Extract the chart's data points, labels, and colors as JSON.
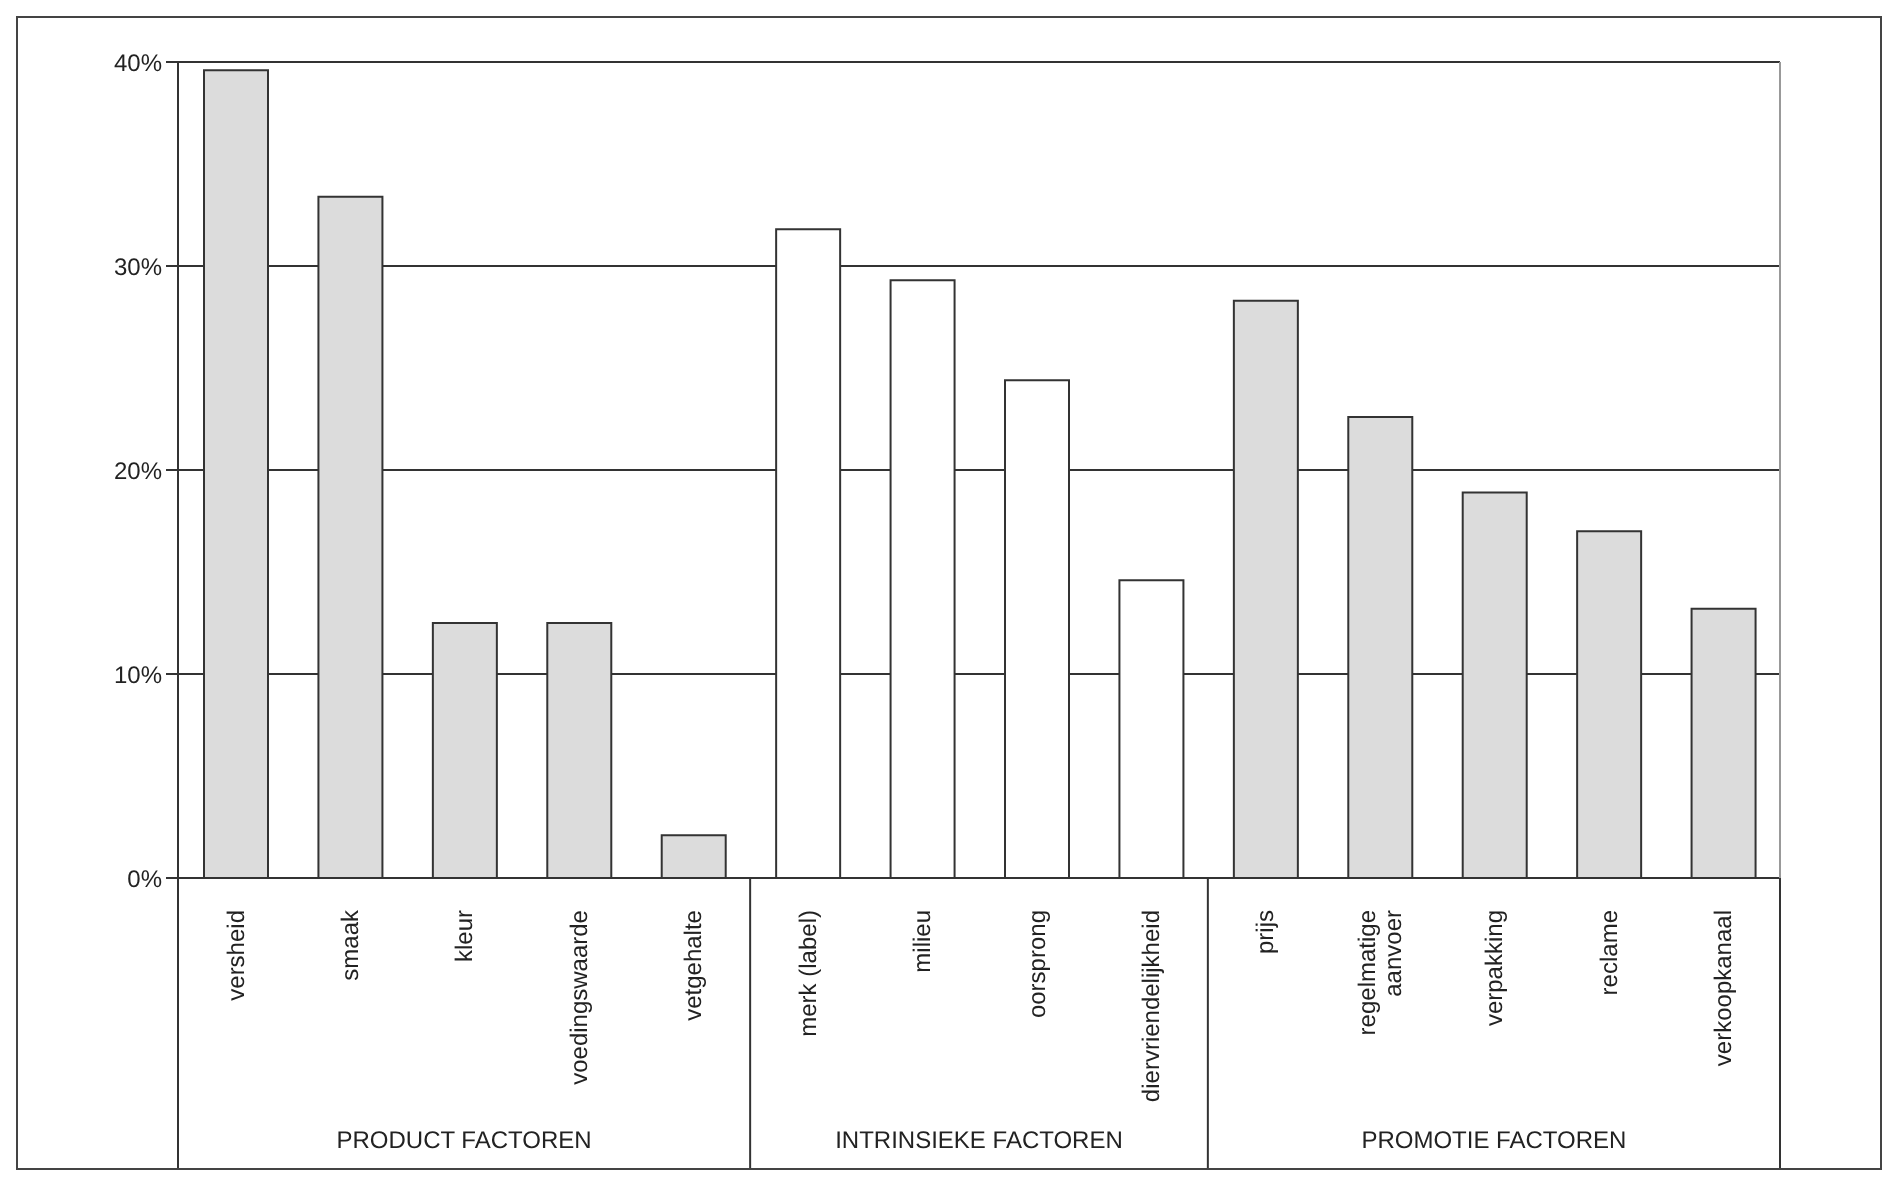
{
  "chart_data": {
    "type": "bar",
    "categories": [
      "versheid",
      "smaak",
      "kleur",
      "voedingswaarde",
      "vetgehalte",
      "merk (label)",
      "milieu",
      "oorsprong",
      "diervriendelijkheid",
      "prijs",
      "regelmatige aanvoer",
      "verpakking",
      "reclame",
      "verkoopkanaal"
    ],
    "values": [
      39.6,
      33.4,
      12.5,
      12.5,
      2.1,
      31.8,
      29.3,
      24.4,
      14.6,
      28.3,
      22.6,
      18.9,
      17.0,
      13.2
    ],
    "colors": [
      "#dcdcdc",
      "#dcdcdc",
      "#dcdcdc",
      "#dcdcdc",
      "#dcdcdc",
      "#ffffff",
      "#ffffff",
      "#ffffff",
      "#ffffff",
      "#dcdcdc",
      "#dcdcdc",
      "#dcdcdc",
      "#dcdcdc",
      "#dcdcdc"
    ],
    "ylim": [
      0,
      40
    ],
    "yticks": [
      {
        "value": 0,
        "label": "0%"
      },
      {
        "value": 10,
        "label": "10%"
      },
      {
        "value": 20,
        "label": "20%"
      },
      {
        "value": 30,
        "label": "30%"
      },
      {
        "value": 40,
        "label": "40%"
      }
    ],
    "grid": "y",
    "annotations": [
      "PRODUCT FACTOREN",
      "INTRINSIEKE FACTOREN",
      "PROMOTIE FACTOREN"
    ]
  }
}
